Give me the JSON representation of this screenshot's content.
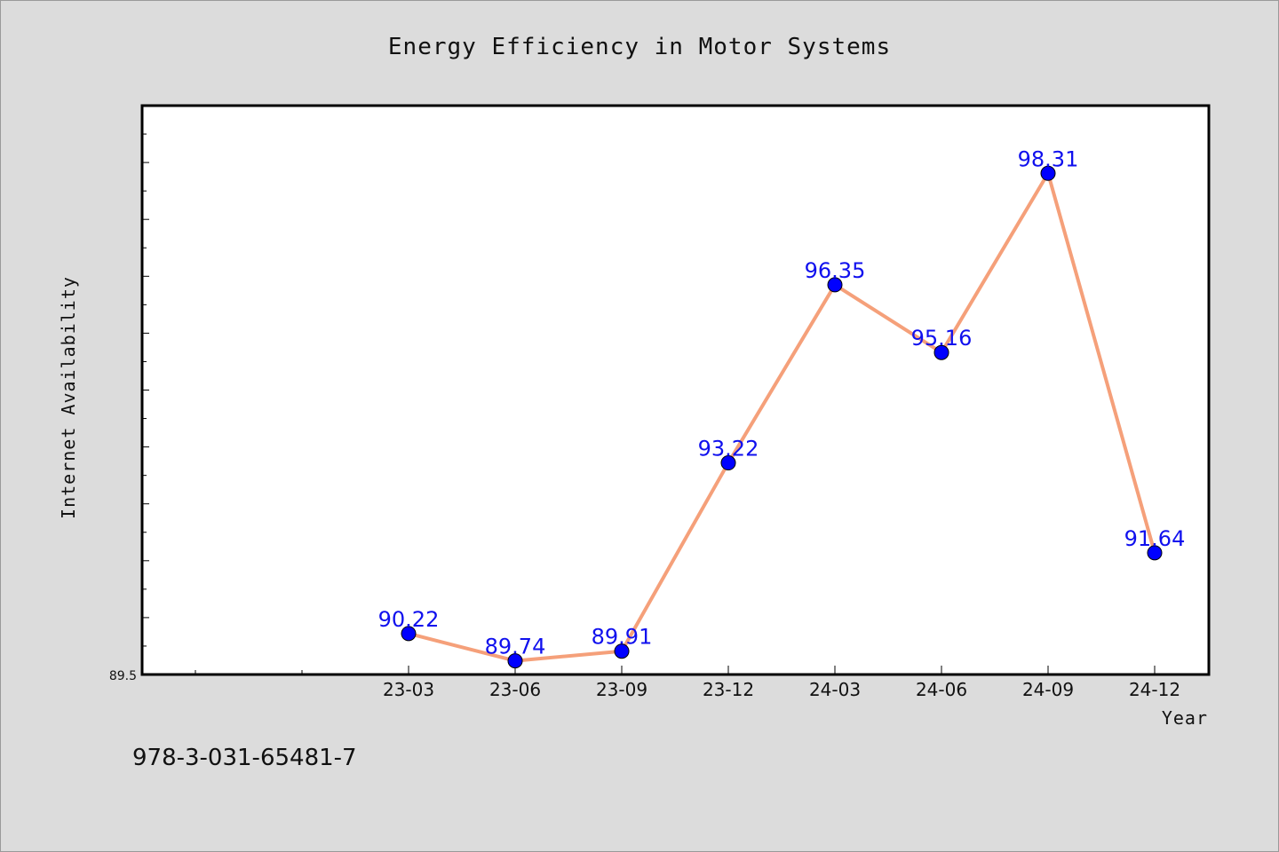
{
  "colors": {
    "background": "#dcdcdc",
    "plot_background": "#ffffff",
    "line": "#f5a07a",
    "marker": "#0000ff",
    "data_label": "#1010ee"
  },
  "footnote": "978-3-031-65481-7",
  "chart_data": {
    "type": "line",
    "title": "Energy Efficiency in Motor Systems",
    "xlabel": "Year",
    "ylabel": "Internet Availability",
    "categories": [
      "23-03",
      "23-06",
      "23-09",
      "23-12",
      "24-03",
      "24-06",
      "24-09",
      "24-12"
    ],
    "series": [
      {
        "values": [
          90.22,
          89.74,
          89.91,
          93.22,
          96.35,
          95.16,
          98.31,
          91.64
        ]
      }
    ],
    "data_labels": [
      "90.22",
      "89.74",
      "89.91",
      "93.22",
      "96.35",
      "95.16",
      "98.31",
      "91.64"
    ],
    "y_tick_label": "89.5",
    "ylim": [
      89.5,
      99.5
    ],
    "grid": false,
    "legend": "none"
  }
}
